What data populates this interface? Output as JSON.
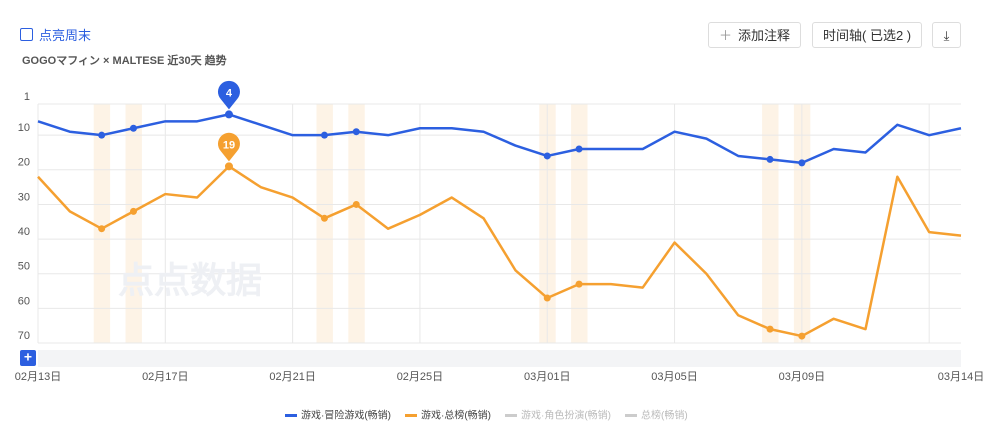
{
  "toolbar": {
    "weekend_toggle": "点亮周末",
    "subtitle": "GOGOマフィン × MALTESE 近30天 趋势",
    "add_note": "添加注释",
    "timeline": "时间轴( 已选2 )",
    "expand": "+"
  },
  "watermark": "点点数据",
  "chart_data": {
    "type": "line",
    "categories": [
      "02月13日",
      null,
      null,
      null,
      "02月17日",
      null,
      null,
      null,
      "02月21日",
      null,
      null,
      null,
      "02月25日",
      null,
      null,
      null,
      "03月01日",
      null,
      null,
      null,
      "03月05日",
      null,
      null,
      null,
      "03月09日",
      null,
      null,
      null,
      null,
      "03月14日"
    ],
    "series": [
      {
        "name": "游戏·冒险游戏(畅销)",
        "color": "#2c5fe0",
        "values": [
          6,
          9,
          10,
          8,
          6,
          6,
          4,
          7,
          10,
          10,
          9,
          10,
          8,
          8,
          9,
          13,
          16,
          14,
          14,
          14,
          9,
          11,
          16,
          17,
          18,
          14,
          15,
          7,
          10,
          8
        ]
      },
      {
        "name": "游戏·总榜(畅销)",
        "color": "#f5a030",
        "values": [
          22,
          32,
          37,
          32,
          27,
          28,
          19,
          25,
          28,
          34,
          30,
          37,
          33,
          28,
          34,
          49,
          57,
          53,
          53,
          54,
          41,
          50,
          62,
          66,
          68,
          63,
          66,
          22,
          38,
          39
        ]
      },
      {
        "name": "游戏·角色扮演(畅销)",
        "color": "#cccccc",
        "hidden": true
      },
      {
        "name": "总榜(畅销)",
        "color": "#cccccc",
        "hidden": true
      }
    ],
    "ylim": [
      1,
      70
    ],
    "yticks": [
      1,
      10,
      20,
      30,
      40,
      50,
      60,
      70
    ],
    "y_inverted": true,
    "grid": true,
    "highlight_categories": [
      2,
      3,
      9,
      10,
      16,
      17,
      23,
      24
    ],
    "pin_best": true
  }
}
